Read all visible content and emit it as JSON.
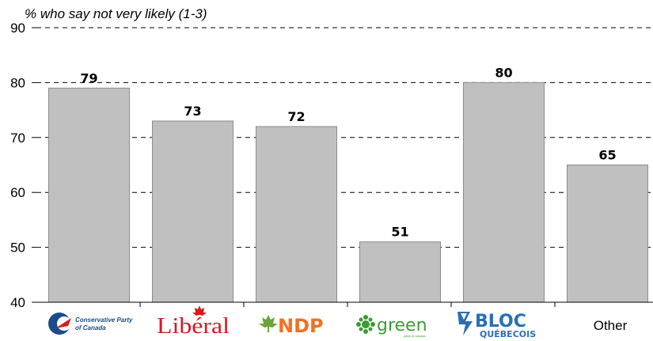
{
  "chart_data": {
    "type": "bar",
    "title": "",
    "subtitle": "% who say not very likely (1-3)",
    "xlabel": "",
    "ylabel": "",
    "ylim": [
      40,
      90
    ],
    "yticks": [
      40,
      50,
      60,
      70,
      80,
      90
    ],
    "grid": "dashed horizontal",
    "categories": [
      "Conservative Party of Canada",
      "Libéral",
      "NDP",
      "green",
      "BLOC QUÉBECOIS",
      "Other"
    ],
    "values": [
      79,
      73,
      72,
      51,
      80,
      65
    ],
    "bar_color": "#c0c0c0",
    "logo_texts": {
      "conservative": [
        "Conservative Party",
        "of Canada"
      ],
      "liberal": "Libéral",
      "ndp": "NDP",
      "green": "green",
      "green_sub": "party of canada",
      "bloc": "BLOC",
      "bloc_sub": "QUÉBECOIS",
      "other": "Other"
    },
    "colors": {
      "conservative_blue": "#1a4b8c",
      "liberal_red": "#d71920",
      "ndp_orange": "#f37021",
      "ndp_green": "#6ba539",
      "green_green": "#3d9b35",
      "bloc_blue": "#2a6fb5"
    }
  }
}
